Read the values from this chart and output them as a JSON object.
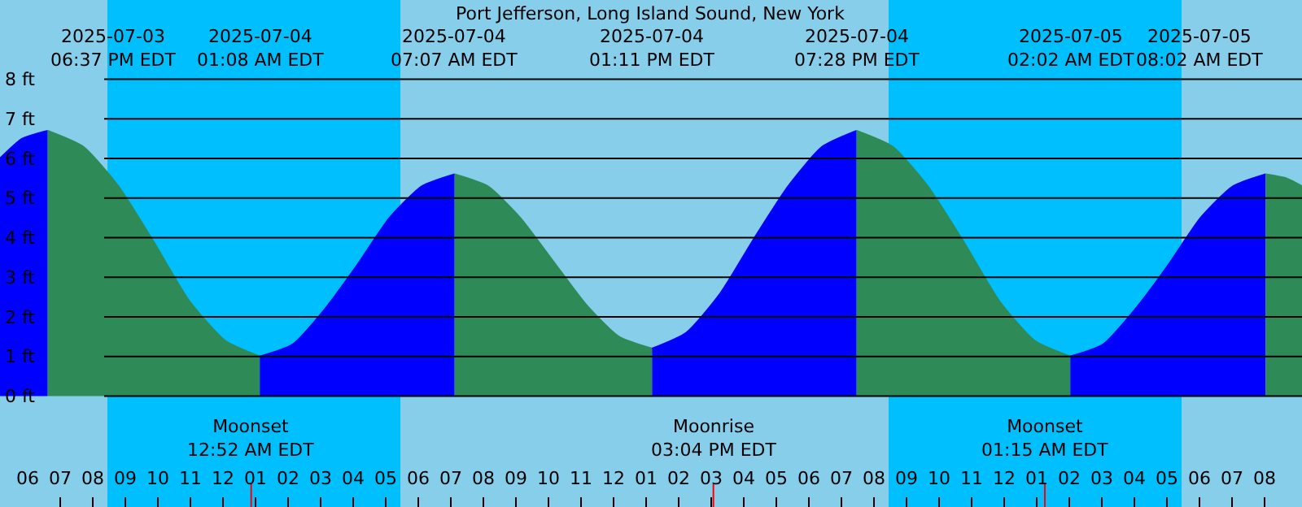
{
  "chart_data": {
    "type": "area",
    "title": "Port Jefferson, Long Island Sound, New York",
    "xlim": [
      "2025-07-03T17:09",
      "2025-07-05T09:09"
    ],
    "xticks": [
      {
        "value": "2025-07-03T18:00",
        "label": "06"
      },
      {
        "value": "2025-07-03T19:00",
        "label": "07"
      },
      {
        "value": "2025-07-03T20:00",
        "label": "08"
      },
      {
        "value": "2025-07-03T21:00",
        "label": "09"
      },
      {
        "value": "2025-07-03T22:00",
        "label": "10"
      },
      {
        "value": "2025-07-03T23:00",
        "label": "11"
      },
      {
        "value": "2025-07-04T00:00",
        "label": "12"
      },
      {
        "value": "2025-07-04T01:00",
        "label": "01"
      },
      {
        "value": "2025-07-04T02:00",
        "label": "02"
      },
      {
        "value": "2025-07-04T03:00",
        "label": "03"
      },
      {
        "value": "2025-07-04T04:00",
        "label": "04"
      },
      {
        "value": "2025-07-04T05:00",
        "label": "05"
      },
      {
        "value": "2025-07-04T06:00",
        "label": "06"
      },
      {
        "value": "2025-07-04T07:00",
        "label": "07"
      },
      {
        "value": "2025-07-04T08:00",
        "label": "08"
      },
      {
        "value": "2025-07-04T09:00",
        "label": "09"
      },
      {
        "value": "2025-07-04T10:00",
        "label": "10"
      },
      {
        "value": "2025-07-04T11:00",
        "label": "11"
      },
      {
        "value": "2025-07-04T12:00",
        "label": "12"
      },
      {
        "value": "2025-07-04T13:00",
        "label": "01"
      },
      {
        "value": "2025-07-04T14:00",
        "label": "02"
      },
      {
        "value": "2025-07-04T15:00",
        "label": "03"
      },
      {
        "value": "2025-07-04T16:00",
        "label": "04"
      },
      {
        "value": "2025-07-04T17:00",
        "label": "05"
      },
      {
        "value": "2025-07-04T18:00",
        "label": "06"
      },
      {
        "value": "2025-07-04T19:00",
        "label": "07"
      },
      {
        "value": "2025-07-04T20:00",
        "label": "08"
      },
      {
        "value": "2025-07-04T21:00",
        "label": "09"
      },
      {
        "value": "2025-07-04T22:00",
        "label": "10"
      },
      {
        "value": "2025-07-04T23:00",
        "label": "11"
      },
      {
        "value": "2025-07-05T00:00",
        "label": "12"
      },
      {
        "value": "2025-07-05T01:00",
        "label": "01"
      },
      {
        "value": "2025-07-05T02:00",
        "label": "02"
      },
      {
        "value": "2025-07-05T03:00",
        "label": "03"
      },
      {
        "value": "2025-07-05T04:00",
        "label": "04"
      },
      {
        "value": "2025-07-05T05:00",
        "label": "05"
      },
      {
        "value": "2025-07-05T06:00",
        "label": "06"
      },
      {
        "value": "2025-07-05T07:00",
        "label": "07"
      },
      {
        "value": "2025-07-05T08:00",
        "label": "08"
      }
    ],
    "ylim": [
      -2.8,
      10
    ],
    "yticks": [
      {
        "value": 0,
        "label": "0 ft"
      },
      {
        "value": 1,
        "label": "1 ft"
      },
      {
        "value": 2,
        "label": "2 ft"
      },
      {
        "value": 3,
        "label": "3 ft"
      },
      {
        "value": 4,
        "label": "4 ft"
      },
      {
        "value": 5,
        "label": "5 ft"
      },
      {
        "value": 6,
        "label": "6 ft"
      },
      {
        "value": 7,
        "label": "7 ft"
      },
      {
        "value": 8,
        "label": "8 ft"
      }
    ],
    "grid": "y",
    "marker": "none",
    "ref_lines": [
      {
        "axis": "x",
        "value": "2025-07-04T00:52",
        "label": "Moonset\n12:52 AM EDT",
        "color": "#ff0000"
      },
      {
        "axis": "x",
        "value": "2025-07-04T15:04",
        "label": "Moonrise\n03:04 PM EDT",
        "color": "#ff0000"
      },
      {
        "axis": "x",
        "value": "2025-07-05T01:15",
        "label": "Moonset\n01:15 AM EDT",
        "color": "#ff0000"
      }
    ],
    "bands": [
      {
        "axis": "x",
        "from": "2025-07-03T20:27",
        "to": "2025-07-04T05:27",
        "color": "#00bfff"
      },
      {
        "axis": "x",
        "from": "2025-07-04T20:27",
        "to": "2025-07-05T05:27",
        "color": "#00bfff"
      }
    ],
    "series": [
      {
        "color": "#0000ff",
        "x": [
          "2025-07-03T17:09",
          "2025-07-03T17:50",
          "2025-07-03T18:37"
        ],
        "values": [
          6.0,
          6.5,
          6.7
        ]
      },
      {
        "color": "#2e8b57",
        "x": [
          "2025-07-03T18:37",
          "2025-07-03T19:42",
          "2025-07-03T20:47",
          "2025-07-03T21:52",
          "2025-07-03T22:58",
          "2025-07-04T00:04",
          "2025-07-04T01:08"
        ],
        "values": [
          6.7,
          6.3,
          5.3,
          3.9,
          2.4,
          1.4,
          1.0
        ]
      },
      {
        "color": "#0000ff",
        "x": [
          "2025-07-04T01:08",
          "2025-07-04T02:08",
          "2025-07-04T03:08",
          "2025-07-04T04:07",
          "2025-07-04T05:07",
          "2025-07-04T06:07",
          "2025-07-04T07:07"
        ],
        "values": [
          1.0,
          1.3,
          2.2,
          3.3,
          4.5,
          5.3,
          5.6
        ]
      },
      {
        "color": "#2e8b57",
        "x": [
          "2025-07-04T07:07",
          "2025-07-04T08:08",
          "2025-07-04T09:08",
          "2025-07-04T10:09",
          "2025-07-04T11:10",
          "2025-07-04T12:10",
          "2025-07-04T13:11"
        ],
        "values": [
          5.6,
          5.3,
          4.5,
          3.4,
          2.3,
          1.5,
          1.2
        ]
      },
      {
        "color": "#0000ff",
        "x": [
          "2025-07-04T13:11",
          "2025-07-04T14:14",
          "2025-07-04T15:17",
          "2025-07-04T16:20",
          "2025-07-04T17:22",
          "2025-07-04T18:25",
          "2025-07-04T19:28"
        ],
        "values": [
          1.2,
          1.6,
          2.6,
          4.0,
          5.3,
          6.3,
          6.7
        ]
      },
      {
        "color": "#2e8b57",
        "x": [
          "2025-07-04T19:28",
          "2025-07-04T20:34",
          "2025-07-04T21:39",
          "2025-07-04T22:45",
          "2025-07-04T23:51",
          "2025-07-05T00:56",
          "2025-07-05T02:02"
        ],
        "values": [
          6.7,
          6.3,
          5.3,
          3.9,
          2.4,
          1.4,
          1.0
        ]
      },
      {
        "color": "#0000ff",
        "x": [
          "2025-07-05T02:02",
          "2025-07-05T03:02",
          "2025-07-05T04:02",
          "2025-07-05T05:02",
          "2025-07-05T06:02",
          "2025-07-05T07:02",
          "2025-07-05T08:02"
        ],
        "values": [
          1.0,
          1.3,
          2.2,
          3.3,
          4.5,
          5.3,
          5.6
        ]
      },
      {
        "color": "#2e8b57",
        "x": [
          "2025-07-05T08:02",
          "2025-07-05T08:40",
          "2025-07-05T09:09"
        ],
        "values": [
          5.6,
          5.5,
          5.3
        ]
      }
    ],
    "annotations": [
      "2025-07-03\n06:37 PM EDT",
      "2025-07-04\n01:08 AM EDT",
      "2025-07-04\n07:07 AM EDT",
      "2025-07-04\n01:11 PM EDT",
      "2025-07-04\n07:28 PM EDT",
      "2025-07-05\n02:02 AM EDT",
      "2025-07-05\n08:02 AM EDT"
    ]
  }
}
